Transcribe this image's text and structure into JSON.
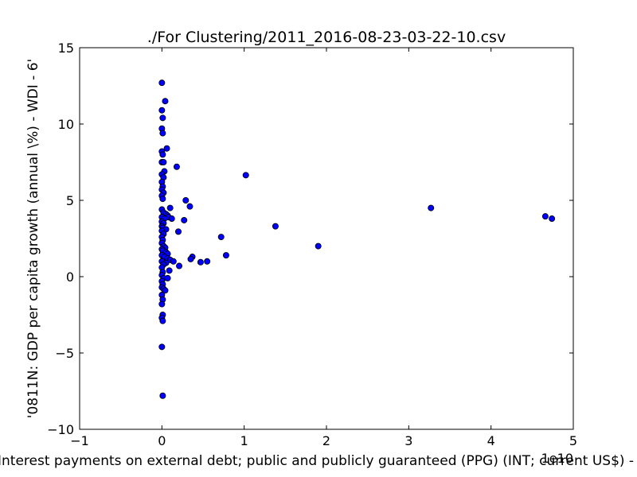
{
  "chart_data": {
    "type": "scatter",
    "title": "./For Clustering/2011_2016-08-23-03-22-10.csv",
    "xlabel": "Interest payments on external debt; public and publicly guaranteed (PPG)  (INT; current US$) - W",
    "ylabel": "'0811N: GDP per capita growth  (annual \\%) - WDI - 6'",
    "x_offset_text": "1e10",
    "xlim": [
      -1,
      5
    ],
    "ylim": [
      -10,
      15
    ],
    "xticks": [
      -1,
      0,
      1,
      2,
      3,
      4,
      5
    ],
    "xtick_labels": [
      "−1",
      "0",
      "1",
      "2",
      "3",
      "4",
      "5"
    ],
    "yticks": [
      -10,
      -5,
      0,
      5,
      10,
      15
    ],
    "ytick_labels": [
      "−10",
      "−5",
      "0",
      "5",
      "10",
      "15"
    ],
    "grid": false,
    "marker_color": "#0000ff",
    "x_units_note": "x values in units of 1e10",
    "points": [
      {
        "x": 0.0,
        "y": 12.7
      },
      {
        "x": 0.04,
        "y": 11.5
      },
      {
        "x": 0.0,
        "y": 10.9
      },
      {
        "x": 0.01,
        "y": 10.4
      },
      {
        "x": 0.0,
        "y": 9.7
      },
      {
        "x": 0.01,
        "y": 9.4
      },
      {
        "x": 0.06,
        "y": 8.4
      },
      {
        "x": 0.0,
        "y": 8.2
      },
      {
        "x": 0.01,
        "y": 8.0
      },
      {
        "x": 0.0,
        "y": 7.5
      },
      {
        "x": 0.02,
        "y": 7.5
      },
      {
        "x": 0.18,
        "y": 7.2
      },
      {
        "x": 0.03,
        "y": 6.9
      },
      {
        "x": 0.0,
        "y": 6.7
      },
      {
        "x": 0.02,
        "y": 6.5
      },
      {
        "x": 0.0,
        "y": 6.2
      },
      {
        "x": 0.01,
        "y": 5.9
      },
      {
        "x": 0.0,
        "y": 5.7
      },
      {
        "x": 0.02,
        "y": 5.5
      },
      {
        "x": 0.0,
        "y": 5.3
      },
      {
        "x": 0.01,
        "y": 5.1
      },
      {
        "x": 0.29,
        "y": 5.0
      },
      {
        "x": 0.34,
        "y": 4.6
      },
      {
        "x": 0.1,
        "y": 4.5
      },
      {
        "x": 0.0,
        "y": 4.4
      },
      {
        "x": 0.02,
        "y": 4.2
      },
      {
        "x": 0.05,
        "y": 4.1
      },
      {
        "x": 0.07,
        "y": 4.0
      },
      {
        "x": 0.0,
        "y": 3.9
      },
      {
        "x": 0.08,
        "y": 3.9
      },
      {
        "x": 0.12,
        "y": 3.8
      },
      {
        "x": 0.03,
        "y": 3.8
      },
      {
        "x": 0.27,
        "y": 3.7
      },
      {
        "x": 0.0,
        "y": 3.6
      },
      {
        "x": 0.02,
        "y": 3.5
      },
      {
        "x": 0.0,
        "y": 3.3
      },
      {
        "x": 0.01,
        "y": 3.2
      },
      {
        "x": 0.05,
        "y": 3.1
      },
      {
        "x": 0.0,
        "y": 3.0
      },
      {
        "x": 0.2,
        "y": 2.95
      },
      {
        "x": 0.02,
        "y": 2.8
      },
      {
        "x": 0.0,
        "y": 2.6
      },
      {
        "x": 0.01,
        "y": 2.4
      },
      {
        "x": 0.0,
        "y": 2.2
      },
      {
        "x": 0.02,
        "y": 2.0
      },
      {
        "x": 0.04,
        "y": 1.9
      },
      {
        "x": 0.0,
        "y": 1.8
      },
      {
        "x": 0.01,
        "y": 1.7
      },
      {
        "x": 0.05,
        "y": 1.6
      },
      {
        "x": 0.07,
        "y": 1.5
      },
      {
        "x": 0.0,
        "y": 1.4
      },
      {
        "x": 0.03,
        "y": 1.3
      },
      {
        "x": 0.07,
        "y": 1.2
      },
      {
        "x": 0.1,
        "y": 1.1
      },
      {
        "x": 0.0,
        "y": 1.0
      },
      {
        "x": 0.14,
        "y": 1.0
      },
      {
        "x": 0.05,
        "y": 0.9
      },
      {
        "x": 0.02,
        "y": 0.8
      },
      {
        "x": 0.21,
        "y": 0.7
      },
      {
        "x": 0.0,
        "y": 0.6
      },
      {
        "x": 0.09,
        "y": 0.4
      },
      {
        "x": 0.01,
        "y": 0.3
      },
      {
        "x": 0.0,
        "y": 0.1
      },
      {
        "x": 0.02,
        "y": -0.1
      },
      {
        "x": 0.07,
        "y": -0.1
      },
      {
        "x": 0.0,
        "y": -0.3
      },
      {
        "x": 0.01,
        "y": -0.5
      },
      {
        "x": 0.0,
        "y": -0.7
      },
      {
        "x": 0.02,
        "y": -0.8
      },
      {
        "x": 0.04,
        "y": -0.9
      },
      {
        "x": 0.0,
        "y": -1.2
      },
      {
        "x": 0.01,
        "y": -1.5
      },
      {
        "x": 0.0,
        "y": -1.8
      },
      {
        "x": 0.01,
        "y": -2.5
      },
      {
        "x": 0.0,
        "y": -2.7
      },
      {
        "x": 0.01,
        "y": -2.9
      },
      {
        "x": 0.0,
        "y": -4.6
      },
      {
        "x": 0.01,
        "y": -7.8
      },
      {
        "x": 1.02,
        "y": 6.65
      },
      {
        "x": 1.38,
        "y": 3.3
      },
      {
        "x": 0.72,
        "y": 2.6
      },
      {
        "x": 0.78,
        "y": 1.4
      },
      {
        "x": 0.37,
        "y": 1.3
      },
      {
        "x": 0.35,
        "y": 1.15
      },
      {
        "x": 0.47,
        "y": 0.95
      },
      {
        "x": 0.55,
        "y": 1.0
      },
      {
        "x": 1.9,
        "y": 2.0
      },
      {
        "x": 3.27,
        "y": 4.5
      },
      {
        "x": 4.66,
        "y": 3.95
      },
      {
        "x": 4.74,
        "y": 3.8
      }
    ]
  }
}
